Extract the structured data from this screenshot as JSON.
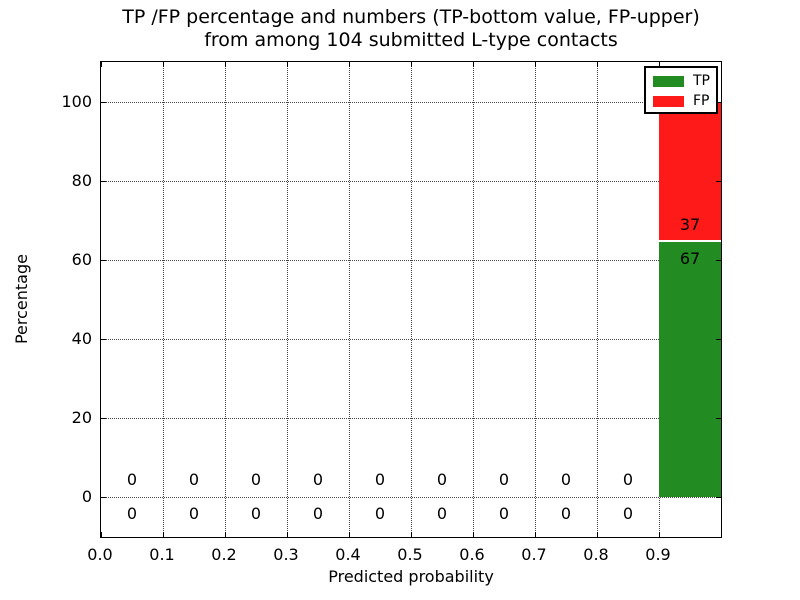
{
  "chart_data": {
    "type": "bar",
    "stacked": true,
    "title_line1": "TP /FP percentage and numbers (TP-bottom value, FP-upper)",
    "title_line2": "from among 104 submitted L-type contacts",
    "xlabel": "Predicted probability",
    "ylabel": "Percentage",
    "total_contacts": 104,
    "xlim": [
      0.0,
      1.0
    ],
    "ylim": [
      -10,
      110
    ],
    "grid": "dotted",
    "xticks": [
      "0.0",
      "0.1",
      "0.2",
      "0.3",
      "0.4",
      "0.5",
      "0.6",
      "0.7",
      "0.8",
      "0.9"
    ],
    "xtick_values": [
      0.0,
      0.1,
      0.2,
      0.3,
      0.4,
      0.5,
      0.6,
      0.7,
      0.8,
      0.9
    ],
    "yticks": [
      "0",
      "20",
      "40",
      "60",
      "80",
      "100"
    ],
    "ytick_values": [
      0,
      20,
      40,
      60,
      80,
      100
    ],
    "bin_centers": [
      0.05,
      0.15,
      0.25,
      0.35,
      0.45,
      0.55,
      0.65,
      0.75,
      0.85,
      0.95
    ],
    "bin_width": 0.1,
    "series": [
      {
        "name": "TP",
        "color": "#228B22",
        "counts": [
          0,
          0,
          0,
          0,
          0,
          0,
          0,
          0,
          0,
          67
        ],
        "pct": [
          0,
          0,
          0,
          0,
          0,
          0,
          0,
          0,
          0,
          64.42
        ]
      },
      {
        "name": "FP",
        "color": "#FF1A1A",
        "counts": [
          0,
          0,
          0,
          0,
          0,
          0,
          0,
          0,
          0,
          37
        ],
        "pct": [
          0,
          0,
          0,
          0,
          0,
          0,
          0,
          0,
          0,
          35.58
        ]
      }
    ],
    "legend": {
      "position": "upper right",
      "entries": [
        {
          "label": "TP",
          "color": "#228B22"
        },
        {
          "label": "FP",
          "color": "#FF1A1A"
        }
      ]
    }
  }
}
